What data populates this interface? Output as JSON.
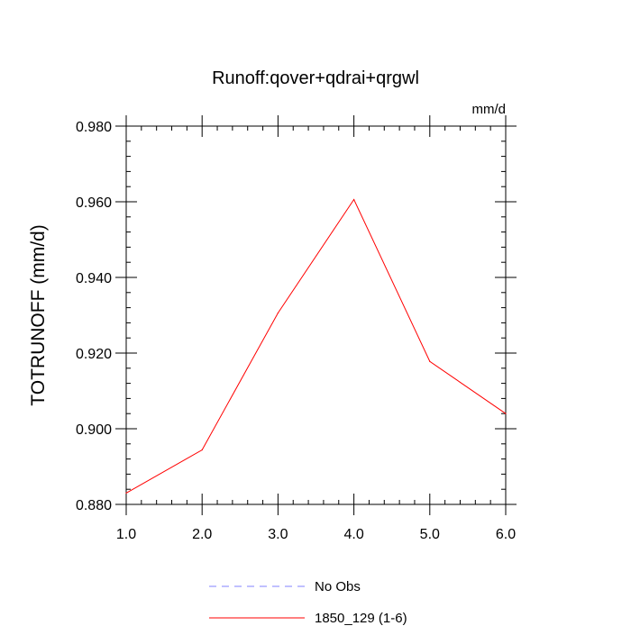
{
  "chart_data": {
    "type": "line",
    "title": "Runoff:qover+qdrai+qrgwl",
    "units_label": "mm/d",
    "ylabel": "TOTRUNOFF  (mm/d)",
    "xlabel": "",
    "xlim": [
      1.0,
      6.0
    ],
    "ylim": [
      0.88,
      0.98
    ],
    "x_ticks": [
      1.0,
      2.0,
      3.0,
      4.0,
      5.0,
      6.0
    ],
    "x_tick_labels": [
      "1.0",
      "2.0",
      "3.0",
      "4.0",
      "5.0",
      "6.0"
    ],
    "y_ticks": [
      0.88,
      0.9,
      0.92,
      0.94,
      0.96,
      0.98
    ],
    "y_tick_labels": [
      "0.880",
      "0.900",
      "0.920",
      "0.940",
      "0.960",
      "0.980"
    ],
    "grid": false,
    "legend_position": "bottom",
    "series": [
      {
        "name": "No Obs",
        "color": "#8080ff",
        "dash": "dashed",
        "x": [],
        "y": []
      },
      {
        "name": "1850_129 (1-6)",
        "color": "#ff0000",
        "dash": "solid",
        "x": [
          1.0,
          2.0,
          3.0,
          4.0,
          5.0,
          6.0
        ],
        "y": [
          0.883,
          0.8944,
          0.9306,
          0.9606,
          0.9178,
          0.904
        ]
      }
    ]
  }
}
